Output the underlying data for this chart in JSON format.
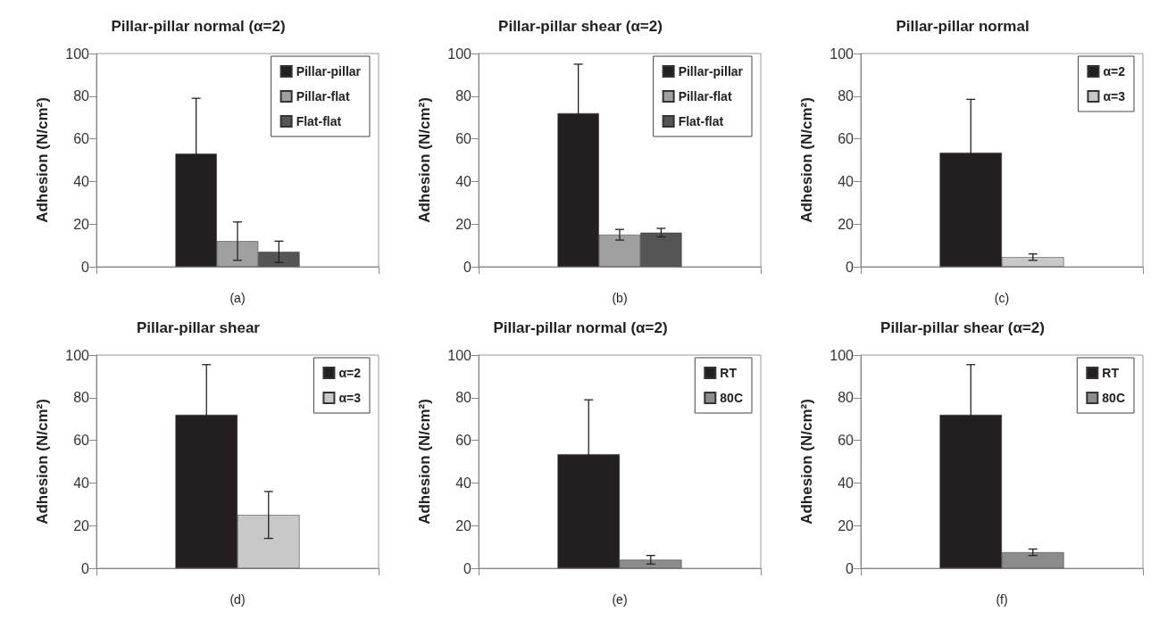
{
  "chart_data": [
    {
      "type": "bar",
      "title": "Pillar-pillar normal (α=2)",
      "xlabel": "(a)",
      "ylabel": "Adhesion (N/cm²)",
      "categories": [
        null
      ],
      "ylim": [
        0,
        100
      ],
      "yticks": [
        0,
        20,
        40,
        60,
        80,
        100
      ],
      "grid": false,
      "legend": "top right",
      "series": [
        {
          "name": "Pillar-pillar",
          "color": "#231f20",
          "values": [
            53
          ],
          "errors": [
            26
          ]
        },
        {
          "name": "Pillar-flat",
          "color": "#a0a0a0",
          "values": [
            12
          ],
          "errors": [
            9
          ]
        },
        {
          "name": "Flat-flat",
          "color": "#555555",
          "values": [
            7
          ],
          "errors": [
            5
          ]
        }
      ]
    },
    {
      "type": "bar",
      "title": "Pillar-pillar shear (α=2)",
      "xlabel": "(b)",
      "ylabel": "Adhesion (N/cm²)",
      "categories": [
        null
      ],
      "ylim": [
        0,
        100
      ],
      "yticks": [
        0,
        20,
        40,
        60,
        80,
        100
      ],
      "grid": false,
      "legend": "top right",
      "series": [
        {
          "name": "Pillar-pillar",
          "color": "#231f20",
          "values": [
            72
          ],
          "errors": [
            23
          ]
        },
        {
          "name": "Pillar-flat",
          "color": "#a0a0a0",
          "values": [
            15
          ],
          "errors": [
            2.5
          ]
        },
        {
          "name": "Flat-flat",
          "color": "#555555",
          "values": [
            16
          ],
          "errors": [
            2
          ]
        }
      ]
    },
    {
      "type": "bar",
      "title": "Pillar-pillar normal",
      "xlabel": "(c)",
      "ylabel": "Adhesion (N/cm²)",
      "categories": [
        null
      ],
      "ylim": [
        0,
        100
      ],
      "yticks": [
        0,
        20,
        40,
        60,
        80,
        100
      ],
      "grid": false,
      "legend": "top right",
      "series": [
        {
          "name": "α=2",
          "color": "#231f20",
          "values": [
            53.5
          ],
          "errors": [
            25
          ]
        },
        {
          "name": "α=3",
          "color": "#c8c8c8",
          "values": [
            4.5
          ],
          "errors": [
            1.5
          ]
        }
      ]
    },
    {
      "type": "bar",
      "title": "Pillar-pillar shear",
      "xlabel": "(d)",
      "ylabel": "Adhesion (N/cm²)",
      "categories": [
        null
      ],
      "ylim": [
        0,
        100
      ],
      "yticks": [
        0,
        20,
        40,
        60,
        80,
        100
      ],
      "grid": false,
      "legend": "top right",
      "series": [
        {
          "name": "α=2",
          "color": "#231f20",
          "values": [
            72
          ],
          "errors": [
            23.5
          ]
        },
        {
          "name": "α=3",
          "color": "#c8c8c8",
          "values": [
            25
          ],
          "errors": [
            11
          ]
        }
      ]
    },
    {
      "type": "bar",
      "title": "Pillar-pillar normal (α=2)",
      "xlabel": "(e)",
      "ylabel": "Adhesion (N/cm²)",
      "categories": [
        null
      ],
      "ylim": [
        0,
        100
      ],
      "yticks": [
        0,
        20,
        40,
        60,
        80,
        100
      ],
      "grid": false,
      "legend": "top right",
      "series": [
        {
          "name": "RT",
          "color": "#231f20",
          "values": [
            53.5
          ],
          "errors": [
            25.5
          ]
        },
        {
          "name": "80C",
          "color": "#8c8c8c",
          "values": [
            4
          ],
          "errors": [
            2
          ]
        }
      ]
    },
    {
      "type": "bar",
      "title": "Pillar-pillar shear (α=2)",
      "xlabel": "(f)",
      "ylabel": "Adhesion (N/cm²)",
      "categories": [
        null
      ],
      "ylim": [
        0,
        100
      ],
      "yticks": [
        0,
        20,
        40,
        60,
        80,
        100
      ],
      "grid": false,
      "legend": "top right",
      "series": [
        {
          "name": "RT",
          "color": "#231f20",
          "values": [
            72
          ],
          "errors": [
            23.5
          ]
        },
        {
          "name": "80C",
          "color": "#8c8c8c",
          "values": [
            7.5
          ],
          "errors": [
            1.5
          ]
        }
      ]
    }
  ]
}
